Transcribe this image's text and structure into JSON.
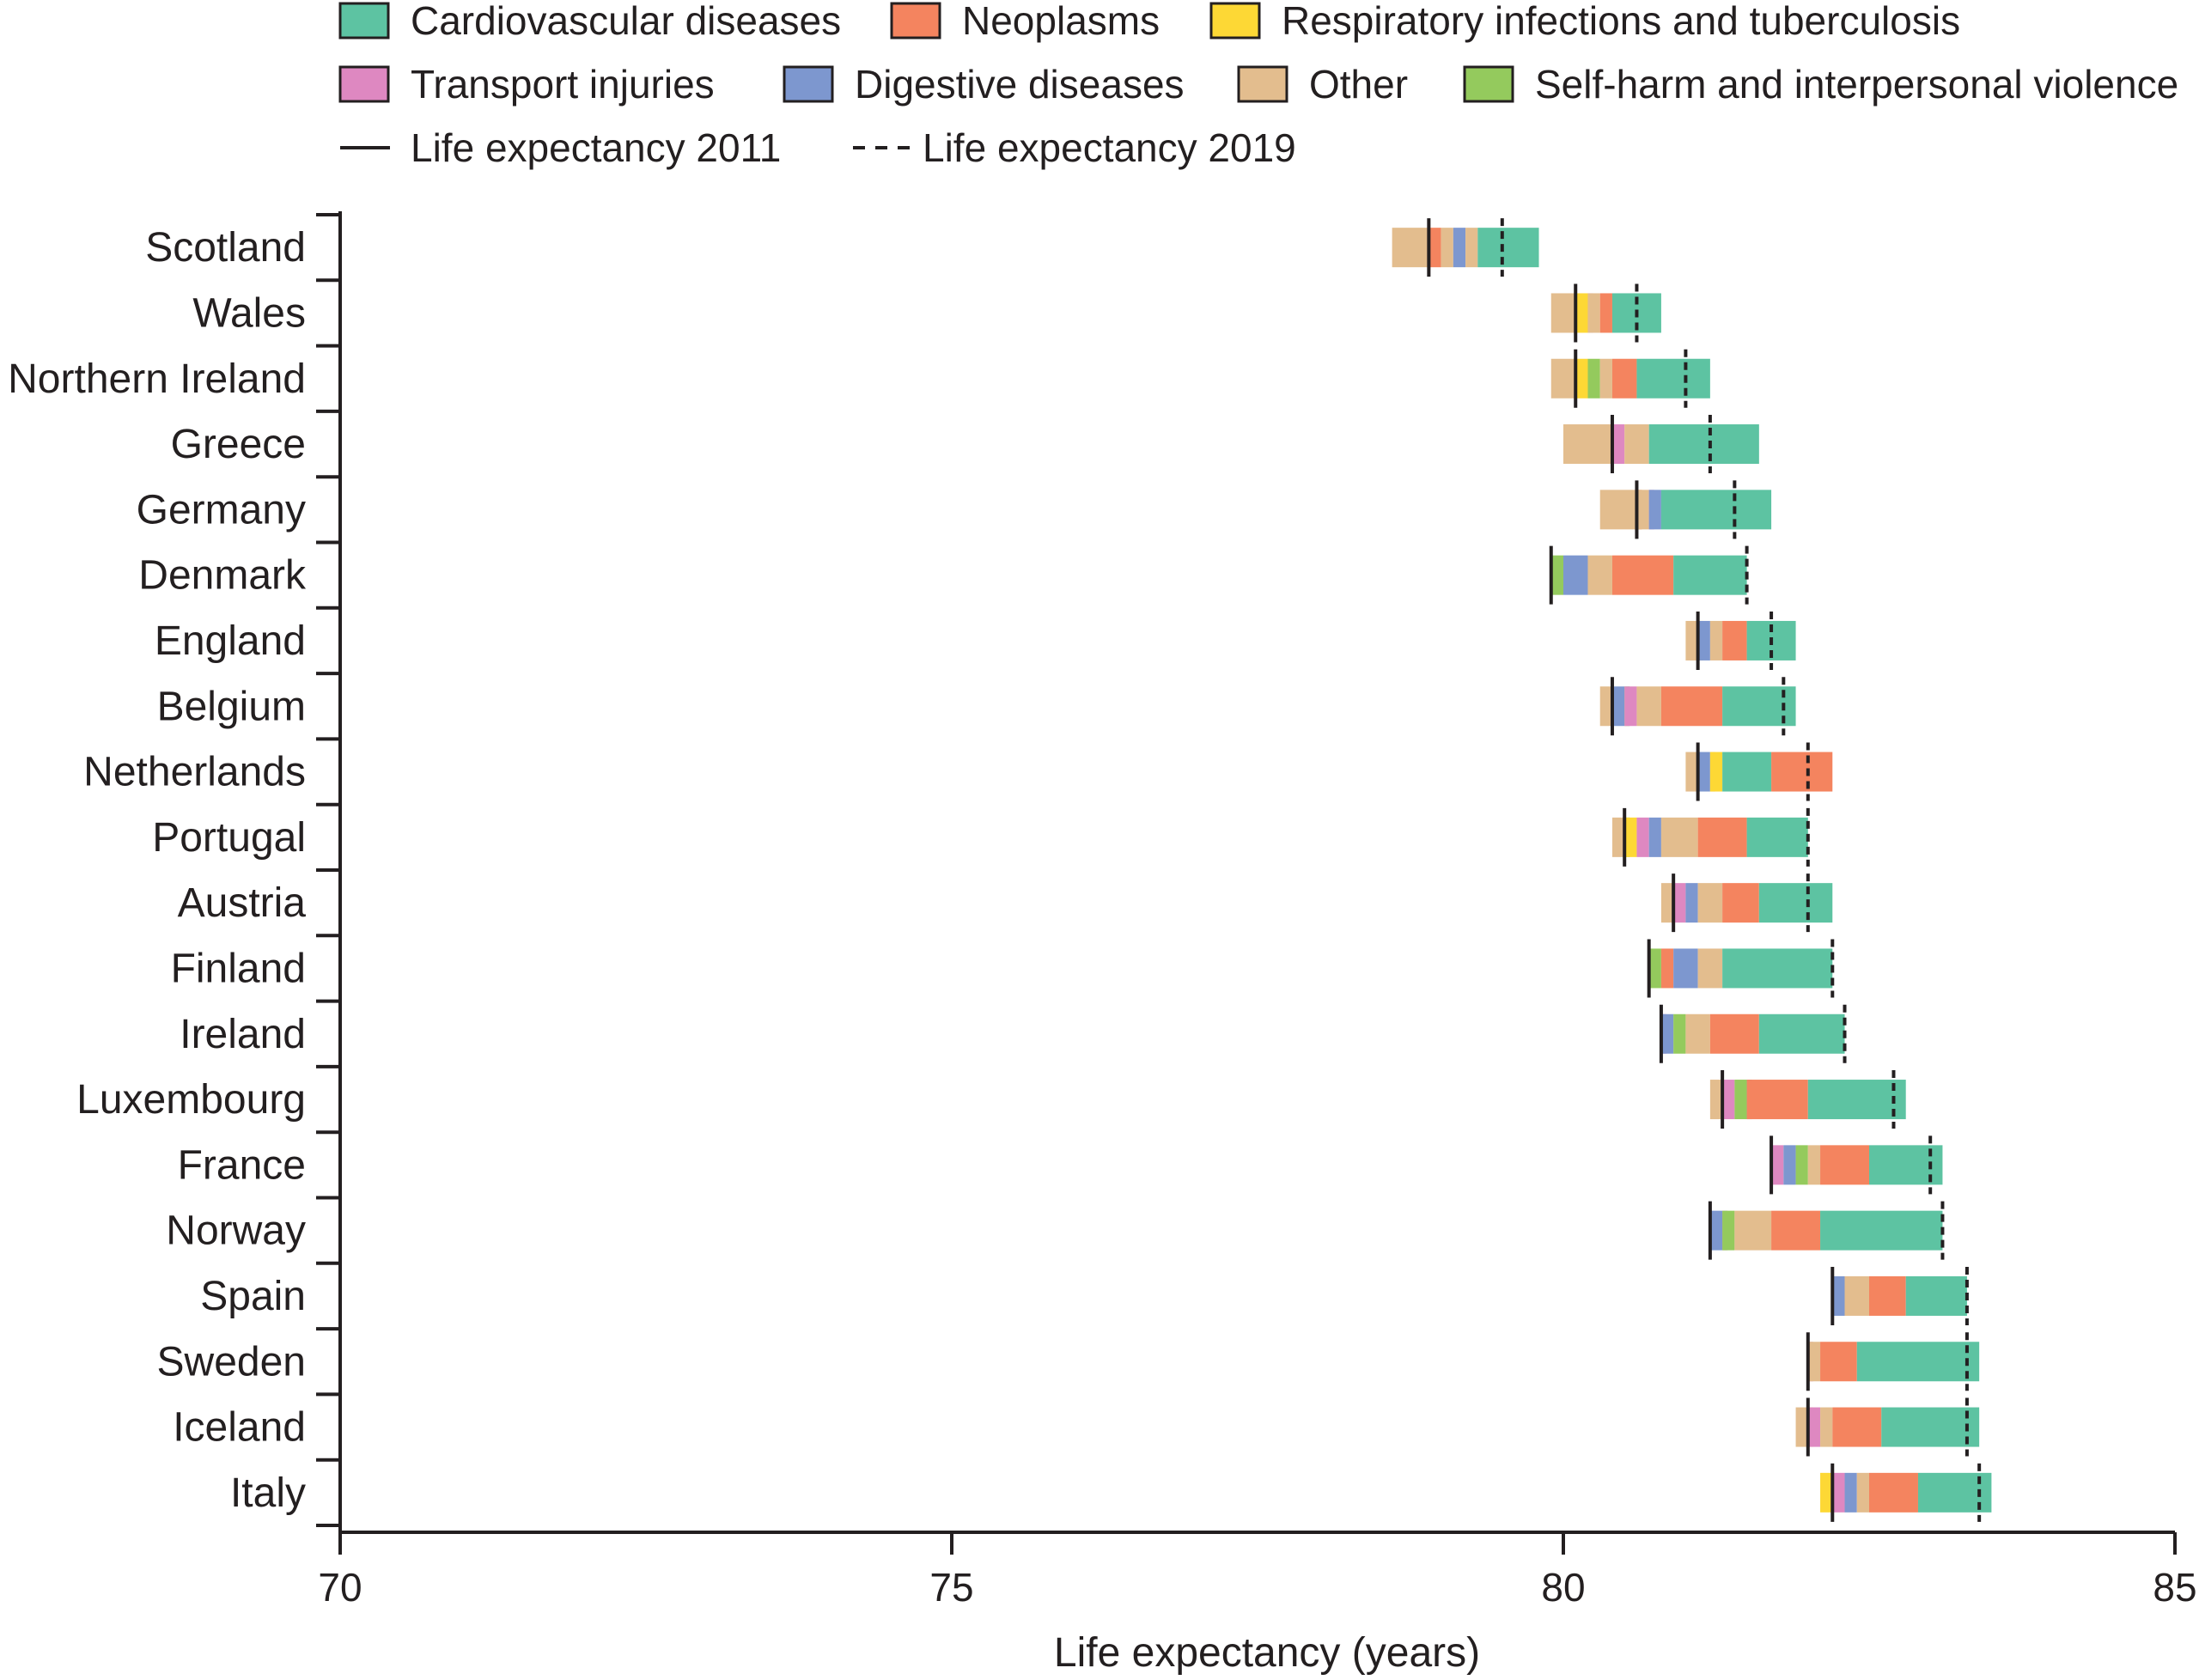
{
  "chart_data": {
    "type": "bar",
    "orientation": "horizontal",
    "stacked": true,
    "xlabel": "Life expectancy (years)",
    "xlim": [
      70,
      85
    ],
    "xticks": [
      "70",
      "75",
      "80",
      "85"
    ],
    "xtick_values": [
      70,
      75,
      80,
      85
    ],
    "grid": false,
    "legend": {
      "position": "top",
      "segments": [
        {
          "key": "cvd",
          "label": "Cardiovascular diseases",
          "color": "#5dc3a2"
        },
        {
          "key": "neo",
          "label": "Neoplasms",
          "color": "#f4845f"
        },
        {
          "key": "resp",
          "label": "Respiratory infections and tuberculosis",
          "color": "#fdd835"
        },
        {
          "key": "transport",
          "label": "Transport injuries",
          "color": "#de88c1"
        },
        {
          "key": "digestive",
          "label": "Digestive diseases",
          "color": "#7d97cf"
        },
        {
          "key": "other",
          "label": "Other",
          "color": "#e3bd8e"
        },
        {
          "key": "selfharm",
          "label": "Self-harm and interpersonal violence",
          "color": "#94ca5d"
        }
      ],
      "lines": [
        {
          "key": "le2011",
          "label": "Life expectancy 2011",
          "style": "solid"
        },
        {
          "key": "le2019",
          "label": "Life expectancy 2019",
          "style": "dashed"
        }
      ]
    },
    "categories": [
      "Scotland",
      "Wales",
      "Northern Ireland",
      "Greece",
      "Germany",
      "Denmark",
      "England",
      "Belgium",
      "Netherlands",
      "Portugal",
      "Austria",
      "Finland",
      "Ireland",
      "Luxembourg",
      "France",
      "Norway",
      "Spain",
      "Sweden",
      "Iceland",
      "Italy"
    ],
    "bars": [
      {
        "country": "Scotland",
        "le2011": 78.9,
        "le2019": 79.5,
        "segments": [
          [
            "other",
            78.6,
            78.9
          ],
          [
            "neo",
            78.9,
            79.0
          ],
          [
            "other",
            79.0,
            79.1
          ],
          [
            "digestive",
            79.1,
            79.2
          ],
          [
            "other",
            79.2,
            79.3
          ],
          [
            "cvd",
            79.3,
            79.8
          ]
        ]
      },
      {
        "country": "Wales",
        "le2011": 80.1,
        "le2019": 80.6,
        "segments": [
          [
            "other",
            79.9,
            80.1
          ],
          [
            "resp",
            80.1,
            80.2
          ],
          [
            "transport",
            80.2,
            80.2
          ],
          [
            "other",
            80.2,
            80.3
          ],
          [
            "neo",
            80.3,
            80.4
          ],
          [
            "cvd",
            80.4,
            80.8
          ]
        ]
      },
      {
        "country": "Northern Ireland",
        "le2011": 80.1,
        "le2019": 81.0,
        "segments": [
          [
            "other",
            79.9,
            80.1
          ],
          [
            "resp",
            80.1,
            80.2
          ],
          [
            "selfharm",
            80.2,
            80.3
          ],
          [
            "other",
            80.3,
            80.4
          ],
          [
            "neo",
            80.4,
            80.6
          ],
          [
            "cvd",
            80.6,
            81.2
          ]
        ]
      },
      {
        "country": "Greece",
        "le2011": 80.4,
        "le2019": 81.2,
        "segments": [
          [
            "other",
            80.0,
            80.4
          ],
          [
            "transport",
            80.4,
            80.5
          ],
          [
            "other",
            80.5,
            80.7
          ],
          [
            "cvd",
            80.7,
            81.6
          ]
        ]
      },
      {
        "country": "Germany",
        "le2011": 80.6,
        "le2019": 81.4,
        "segments": [
          [
            "other",
            80.3,
            80.6
          ],
          [
            "neo",
            80.6,
            80.6
          ],
          [
            "other",
            80.6,
            80.7
          ],
          [
            "transport",
            80.7,
            80.7
          ],
          [
            "digestive",
            80.7,
            80.8
          ],
          [
            "cvd",
            80.8,
            81.7
          ]
        ]
      },
      {
        "country": "Denmark",
        "le2011": 79.9,
        "le2019": 81.5,
        "segments": [
          [
            "selfharm",
            79.9,
            80.0
          ],
          [
            "digestive",
            80.0,
            80.2
          ],
          [
            "other",
            80.2,
            80.4
          ],
          [
            "neo",
            80.4,
            80.9
          ],
          [
            "cvd",
            80.9,
            81.5
          ]
        ]
      },
      {
        "country": "England",
        "le2011": 81.1,
        "le2019": 81.7,
        "segments": [
          [
            "other",
            81.0,
            81.1
          ],
          [
            "resp",
            81.1,
            81.1
          ],
          [
            "digestive",
            81.1,
            81.2
          ],
          [
            "other",
            81.2,
            81.3
          ],
          [
            "neo",
            81.3,
            81.5
          ],
          [
            "cvd",
            81.5,
            81.9
          ]
        ]
      },
      {
        "country": "Belgium",
        "le2011": 80.4,
        "le2019": 81.8,
        "segments": [
          [
            "other",
            80.3,
            80.4
          ],
          [
            "digestive",
            80.4,
            80.5
          ],
          [
            "selfharm",
            80.5,
            80.5
          ],
          [
            "transport",
            80.5,
            80.6
          ],
          [
            "other",
            80.6,
            80.8
          ],
          [
            "neo",
            80.8,
            81.3
          ],
          [
            "cvd",
            81.3,
            81.9
          ]
        ]
      },
      {
        "country": "Netherlands",
        "le2011": 81.1,
        "le2019": 82.0,
        "segments": [
          [
            "other",
            81.0,
            81.1
          ],
          [
            "digestive",
            81.1,
            81.2
          ],
          [
            "other",
            81.2,
            81.2
          ],
          [
            "resp",
            81.2,
            81.3
          ],
          [
            "cvd",
            81.3,
            81.7
          ],
          [
            "neo",
            81.7,
            82.2
          ]
        ]
      },
      {
        "country": "Portugal",
        "le2011": 80.5,
        "le2019": 82.0,
        "segments": [
          [
            "other",
            80.4,
            80.5
          ],
          [
            "selfharm",
            80.5,
            80.5
          ],
          [
            "resp",
            80.5,
            80.6
          ],
          [
            "transport",
            80.6,
            80.7
          ],
          [
            "digestive",
            80.7,
            80.8
          ],
          [
            "other",
            80.8,
            81.1
          ],
          [
            "neo",
            81.1,
            81.5
          ],
          [
            "cvd",
            81.5,
            82.0
          ]
        ]
      },
      {
        "country": "Austria",
        "le2011": 80.9,
        "le2019": 82.0,
        "segments": [
          [
            "other",
            80.8,
            80.9
          ],
          [
            "transport",
            80.9,
            81.0
          ],
          [
            "digestive",
            81.0,
            81.1
          ],
          [
            "other",
            81.1,
            81.3
          ],
          [
            "neo",
            81.3,
            81.6
          ],
          [
            "cvd",
            81.6,
            82.2
          ]
        ]
      },
      {
        "country": "Finland",
        "le2011": 80.7,
        "le2019": 82.2,
        "segments": [
          [
            "selfharm",
            80.7,
            80.8
          ],
          [
            "neo",
            80.8,
            80.9
          ],
          [
            "digestive",
            80.9,
            81.1
          ],
          [
            "other",
            81.1,
            81.3
          ],
          [
            "cvd",
            81.3,
            82.2
          ]
        ]
      },
      {
        "country": "Ireland",
        "le2011": 80.8,
        "le2019": 82.3,
        "segments": [
          [
            "transport",
            80.8,
            80.8
          ],
          [
            "digestive",
            80.8,
            80.9
          ],
          [
            "selfharm",
            80.9,
            81.0
          ],
          [
            "other",
            81.0,
            81.2
          ],
          [
            "neo",
            81.2,
            81.6
          ],
          [
            "cvd",
            81.6,
            82.3
          ]
        ]
      },
      {
        "country": "Luxembourg",
        "le2011": 81.3,
        "le2019": 82.7,
        "segments": [
          [
            "other",
            81.2,
            81.3
          ],
          [
            "transport",
            81.3,
            81.4
          ],
          [
            "selfharm",
            81.4,
            81.5
          ],
          [
            "digestive",
            81.5,
            81.5
          ],
          [
            "neo",
            81.5,
            82.0
          ],
          [
            "cvd",
            82.0,
            82.8
          ]
        ]
      },
      {
        "country": "France",
        "le2011": 81.7,
        "le2019": 83.0,
        "segments": [
          [
            "transport",
            81.7,
            81.8
          ],
          [
            "digestive",
            81.8,
            81.9
          ],
          [
            "selfharm",
            81.9,
            82.0
          ],
          [
            "other",
            82.0,
            82.1
          ],
          [
            "neo",
            82.1,
            82.5
          ],
          [
            "cvd",
            82.5,
            83.1
          ]
        ]
      },
      {
        "country": "Norway",
        "le2011": 81.2,
        "le2019": 83.1,
        "segments": [
          [
            "digestive",
            81.2,
            81.3
          ],
          [
            "transport",
            81.3,
            81.3
          ],
          [
            "selfharm",
            81.3,
            81.4
          ],
          [
            "other",
            81.4,
            81.7
          ],
          [
            "neo",
            81.7,
            82.1
          ],
          [
            "cvd",
            82.1,
            83.1
          ]
        ]
      },
      {
        "country": "Spain",
        "le2011": 82.2,
        "le2019": 83.3,
        "segments": [
          [
            "digestive",
            82.2,
            82.3
          ],
          [
            "other",
            82.3,
            82.5
          ],
          [
            "neo",
            82.5,
            82.8
          ],
          [
            "cvd",
            82.8,
            83.3
          ]
        ]
      },
      {
        "country": "Sweden",
        "le2011": 82.0,
        "le2019": 83.3,
        "segments": [
          [
            "transport",
            82.0,
            82.0
          ],
          [
            "other",
            82.0,
            82.1
          ],
          [
            "neo",
            82.1,
            82.4
          ],
          [
            "cvd",
            82.4,
            83.4
          ]
        ]
      },
      {
        "country": "Iceland",
        "le2011": 82.0,
        "le2019": 83.3,
        "segments": [
          [
            "other",
            81.9,
            82.0
          ],
          [
            "resp",
            82.0,
            82.0
          ],
          [
            "transport",
            82.0,
            82.1
          ],
          [
            "other",
            82.1,
            82.2
          ],
          [
            "neo",
            82.2,
            82.6
          ],
          [
            "cvd",
            82.6,
            83.4
          ]
        ]
      },
      {
        "country": "Italy",
        "le2011": 82.2,
        "le2019": 83.4,
        "segments": [
          [
            "resp",
            82.1,
            82.2
          ],
          [
            "transport",
            82.2,
            82.3
          ],
          [
            "digestive",
            82.3,
            82.4
          ],
          [
            "other",
            82.4,
            82.5
          ],
          [
            "neo",
            82.5,
            82.9
          ],
          [
            "cvd",
            82.9,
            83.5
          ]
        ]
      }
    ]
  }
}
